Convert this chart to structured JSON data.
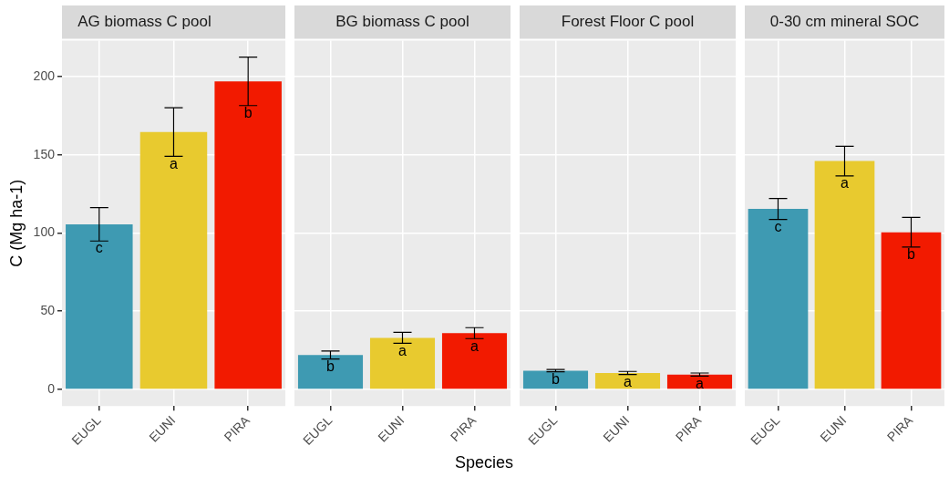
{
  "chart_data": [
    {
      "type": "bar",
      "title": "AG biomass C pool",
      "ylabel": "C (Mg ha-1)",
      "categories": [
        "EUGL",
        "EUNI",
        "PIRA"
      ],
      "values": [
        105.6,
        164.6,
        197
      ],
      "errors": [
        10.7,
        15.5,
        15.5
      ],
      "colors": [
        "#3e9ab2",
        "#e8ca2f",
        "#f21a00"
      ],
      "ylim": [
        -10.6,
        223.1
      ],
      "yticks": [
        0,
        50,
        100,
        150,
        200
      ],
      "grid": true,
      "legend": false,
      "annotations": [
        {
          "text": "c",
          "x": "EUGL",
          "y": 95
        },
        {
          "text": "a",
          "x": "EUNI",
          "y": 149
        },
        {
          "text": "b",
          "x": "PIRA",
          "y": 181.5
        }
      ]
    },
    {
      "type": "bar",
      "title": "BG biomass C pool",
      "xlabel": "Species",
      "categories": [
        "EUGL",
        "EUNI",
        "PIRA"
      ],
      "values": [
        22,
        33,
        36
      ],
      "errors": [
        2.5,
        3.5,
        3.5
      ],
      "colors": [
        "#3e9ab2",
        "#e8ca2f",
        "#f21a00"
      ],
      "ylim": [
        -10.6,
        223.1
      ],
      "yticks": [
        0,
        50,
        100,
        150,
        200
      ],
      "grid": true,
      "legend": false,
      "tick_labels": "x",
      "annotations": [
        {
          "text": "b",
          "x": "EUGL",
          "y": 19.5
        },
        {
          "text": "a",
          "x": "EUNI",
          "y": 29.5
        },
        {
          "text": "a",
          "x": "PIRA",
          "y": 32.5
        }
      ]
    },
    {
      "type": "bar",
      "title": "Forest Floor C pool",
      "categories": [
        "EUGL",
        "EUNI",
        "PIRA"
      ],
      "values": [
        12,
        10.5,
        9.5
      ],
      "errors": [
        0.7,
        1,
        1
      ],
      "colors": [
        "#3e9ab2",
        "#e8ca2f",
        "#f21a00"
      ],
      "ylim": [
        -10.6,
        223.1
      ],
      "yticks": [
        0,
        50,
        100,
        150,
        200
      ],
      "grid": true,
      "legend": false,
      "tick_labels": "x",
      "annotations": [
        {
          "text": "b",
          "x": "EUGL",
          "y": 11.3
        },
        {
          "text": "a",
          "x": "EUNI",
          "y": 9.5
        },
        {
          "text": "a",
          "x": "PIRA",
          "y": 8.5
        }
      ]
    },
    {
      "type": "bar",
      "title": "0-30 cm mineral SOC",
      "categories": [
        "EUGL",
        "EUNI",
        "PIRA"
      ],
      "values": [
        115.4,
        146,
        100.5
      ],
      "errors": [
        6.7,
        9.5,
        9.5
      ],
      "colors": [
        "#3e9ab2",
        "#e8ca2f",
        "#f21a00"
      ],
      "ylim": [
        -10.6,
        223.1
      ],
      "yticks": [
        0,
        50,
        100,
        150,
        200
      ],
      "grid": true,
      "legend": false,
      "tick_labels": "x",
      "annotations": [
        {
          "text": "c",
          "x": "EUGL",
          "y": 108.7
        },
        {
          "text": "a",
          "x": "EUNI",
          "y": 136.5
        },
        {
          "text": "b",
          "x": "PIRA",
          "y": 91
        }
      ]
    }
  ]
}
